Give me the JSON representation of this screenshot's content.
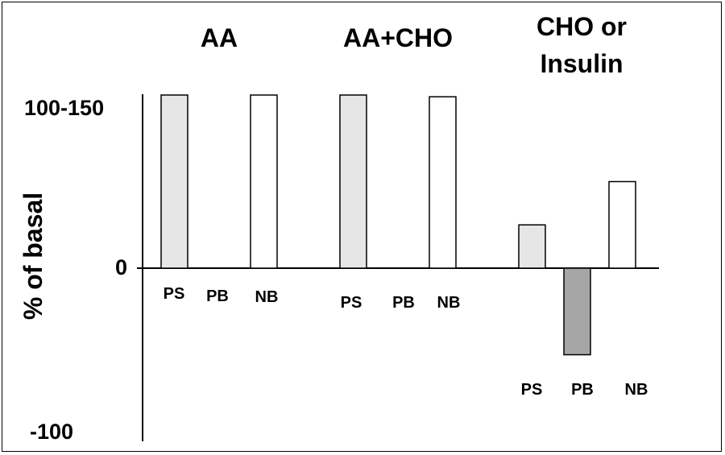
{
  "chart_data": {
    "type": "bar",
    "ylabel": "% of basal",
    "y_tick_labels": [
      {
        "label": "100-150",
        "value": 100
      },
      {
        "label": "0",
        "value": 0
      },
      {
        "label": "-100",
        "value": -100
      }
    ],
    "ylim": [
      -100,
      100
    ],
    "groups": [
      {
        "title_lines": [
          "AA"
        ],
        "bars": [
          {
            "category": "PS",
            "value": 100,
            "color": "#e6e6e6"
          },
          {
            "category": "PB",
            "value": 0,
            "color": "#a6a6a6"
          },
          {
            "category": "NB",
            "value": 100,
            "color": "#ffffff"
          }
        ]
      },
      {
        "title_lines": [
          "AA+CHO"
        ],
        "bars": [
          {
            "category": "PS",
            "value": 100,
            "color": "#e6e6e6"
          },
          {
            "category": "PB",
            "value": 0,
            "color": "#a6a6a6"
          },
          {
            "category": "NB",
            "value": 99,
            "color": "#ffffff"
          }
        ]
      },
      {
        "title_lines": [
          "CHO or",
          "Insulin"
        ],
        "bars": [
          {
            "category": "PS",
            "value": 25,
            "color": "#e6e6e6"
          },
          {
            "category": "PB",
            "value": -50,
            "color": "#a6a6a6"
          },
          {
            "category": "NB",
            "value": 50,
            "color": "#ffffff"
          }
        ]
      }
    ]
  }
}
